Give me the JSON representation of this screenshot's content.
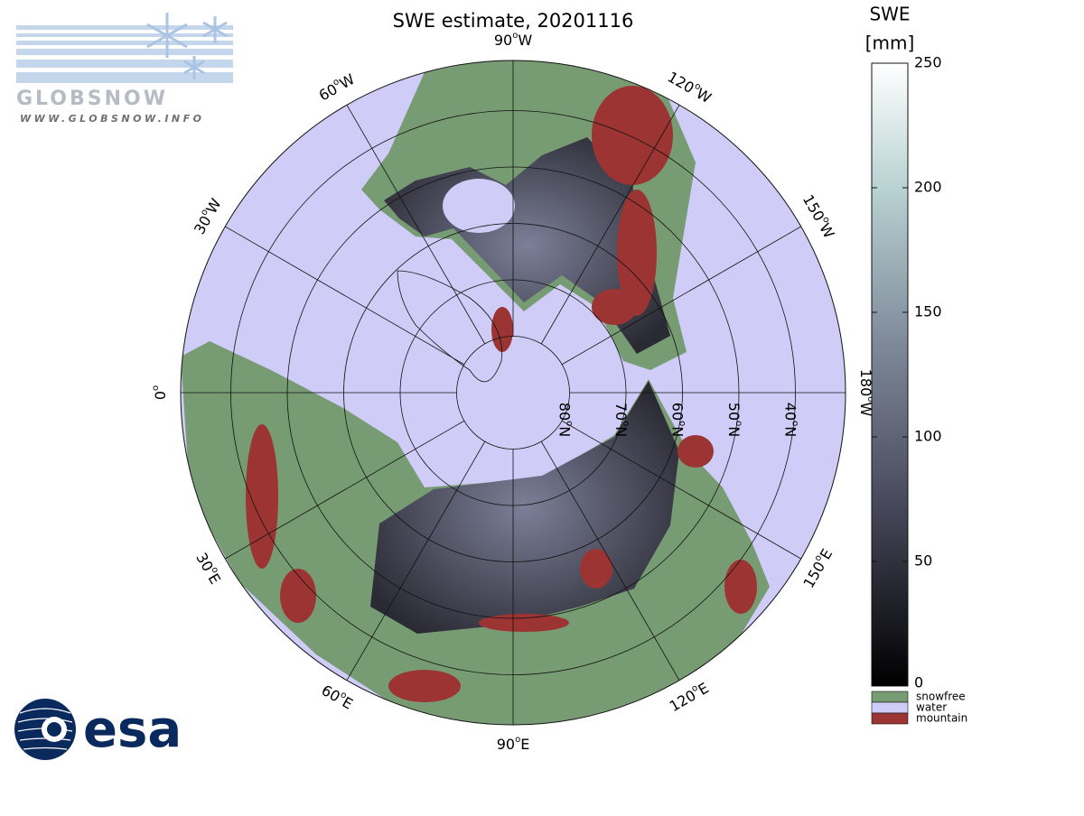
{
  "title": "SWE estimate, 20201116",
  "logo": {
    "name": "GLOBSNOW",
    "url": "WWW.GLOBSNOW.INFO",
    "esa": "esa"
  },
  "longitude_labels": [
    {
      "deg": 0,
      "sup": "o",
      "hemi": ""
    },
    {
      "deg": 30,
      "sup": "o",
      "hemi": "W"
    },
    {
      "deg": 60,
      "sup": "o",
      "hemi": "W"
    },
    {
      "deg": 90,
      "sup": "o",
      "hemi": "W"
    },
    {
      "deg": 120,
      "sup": "o",
      "hemi": "W"
    },
    {
      "deg": 150,
      "sup": "o",
      "hemi": "W"
    },
    {
      "deg": 180,
      "sup": "o",
      "hemi": "W"
    },
    {
      "deg": 150,
      "sup": "o",
      "hemi": "E"
    },
    {
      "deg": 120,
      "sup": "o",
      "hemi": "E"
    },
    {
      "deg": 90,
      "sup": "o",
      "hemi": "E"
    },
    {
      "deg": 60,
      "sup": "o",
      "hemi": "E"
    },
    {
      "deg": 30,
      "sup": "o",
      "hemi": "E"
    }
  ],
  "latitude_labels": [
    {
      "deg": 80,
      "sup": "o",
      "hemi": "N"
    },
    {
      "deg": 70,
      "sup": "o",
      "hemi": "N"
    },
    {
      "deg": 60,
      "sup": "o",
      "hemi": "N"
    },
    {
      "deg": 50,
      "sup": "o",
      "hemi": "N"
    },
    {
      "deg": 40,
      "sup": "o",
      "hemi": "N"
    }
  ],
  "colorbar": {
    "title": [
      "SWE",
      "[mm]"
    ],
    "range": [
      0,
      250
    ],
    "ticks": [
      0,
      50,
      100,
      150,
      200,
      250
    ],
    "classes": [
      {
        "label": "snowfree",
        "color": "#779b72"
      },
      {
        "label": "water",
        "color": "#cfcdf7"
      },
      {
        "label": "mountain",
        "color": "#9c3434"
      }
    ]
  }
}
